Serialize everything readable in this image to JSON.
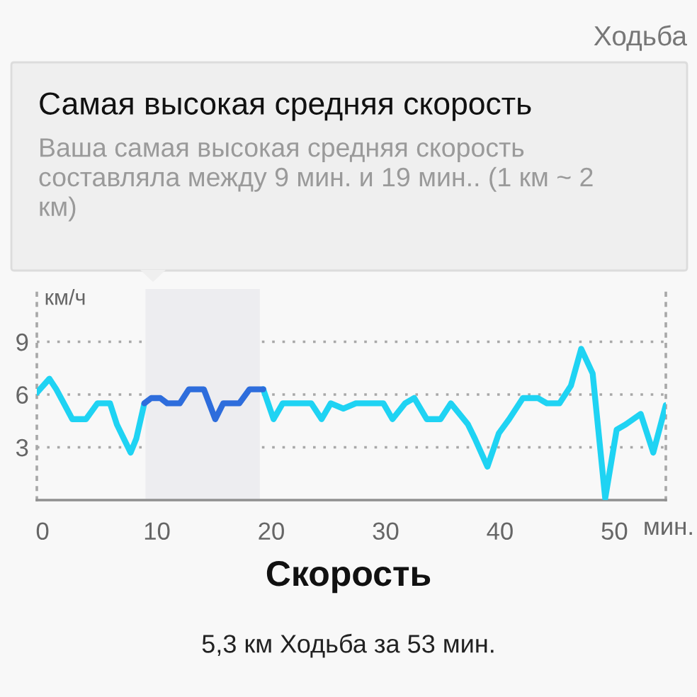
{
  "chart_data": {
    "type": "line",
    "title": "Скорость",
    "annotations": [
      "Ходьба",
      "Самая высокая средняя скорость",
      "Ваша самая высокая средняя скорость составляла между 9 мин. и 19 мин.. (1 км ~ 2 км)",
      "5,3 км Ходьба за 53 мин."
    ],
    "xlabel": "мин.",
    "ylabel": "км/ч",
    "x": [
      -0.5,
      0.6,
      1.2,
      1.7,
      2.6,
      3.8,
      4.8,
      5.9,
      6.5,
      7.1,
      7.7,
      8.2,
      8.9,
      9.5,
      10.3,
      10.9,
      12.0,
      12.8,
      14.1,
      15.1,
      15.8,
      17.2,
      18.1,
      19.3,
      20.2,
      21.0,
      23.5,
      24.4,
      25.2,
      26.3,
      27.4,
      29.8,
      30.6,
      31.7,
      32.5,
      33.6,
      34.8,
      35.7,
      37.2,
      37.8,
      38.9,
      39.9,
      40.8,
      42.0,
      43.3,
      44.1,
      45.2,
      46.2,
      47.1,
      48.1,
      49.2,
      50.2,
      51.0,
      52.3,
      53.4,
      54.5
    ],
    "series": [
      {
        "color": "#1fd3f3",
        "values": [
          6.1,
          6.9,
          6.3,
          5.7,
          4.6,
          4.6,
          5.5,
          5.5,
          4.3,
          3.5,
          2.7,
          3.5,
          5.5,
          null,
          null,
          null,
          null,
          null,
          null,
          null,
          null,
          null,
          null,
          6.3,
          4.6,
          5.5,
          5.5,
          4.6,
          5.5,
          5.2,
          5.5,
          5.5,
          4.6,
          5.5,
          5.8,
          4.6,
          4.6,
          5.5,
          4.3,
          3.5,
          1.9,
          3.8,
          4.6,
          5.8,
          5.8,
          5.5,
          5.5,
          6.5,
          8.6,
          7.2,
          0.1,
          4.0,
          4.3,
          4.9,
          2.7,
          5.4
        ]
      },
      {
        "color": "#2e6ddc",
        "values": [
          null,
          null,
          null,
          null,
          null,
          null,
          null,
          null,
          null,
          null,
          null,
          null,
          5.5,
          5.8,
          5.8,
          5.5,
          5.5,
          6.3,
          6.3,
          4.6,
          5.5,
          5.5,
          6.3,
          6.3,
          null,
          null,
          null,
          null,
          null,
          null,
          null,
          null,
          null,
          null,
          null,
          null,
          null,
          null,
          null,
          null,
          null,
          null,
          null,
          null,
          null,
          null,
          null,
          null,
          null,
          null,
          null,
          null,
          null,
          null,
          null,
          null
        ]
      }
    ],
    "xlim": [
      -0.5,
      54.5
    ],
    "xticks": [
      0,
      10,
      20,
      30,
      40,
      50
    ],
    "ylim": [
      0,
      12
    ],
    "yticks": [
      3,
      6,
      9
    ],
    "grid": "y",
    "bands": [
      {
        "axis": "x",
        "from": 9,
        "to": 19,
        "color": "#ededf0"
      }
    ],
    "marker": "none",
    "line_style": "solid"
  }
}
